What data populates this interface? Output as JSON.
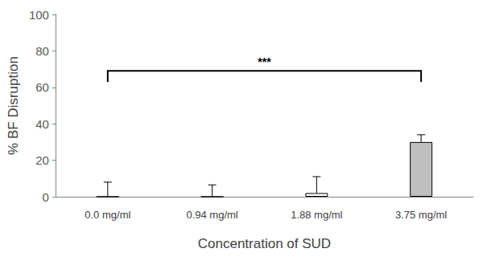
{
  "chart_data": {
    "type": "bar",
    "x_label": "Concentration of SUD",
    "y_label": "% BF Disruption",
    "categories": [
      "0.0 mg/ml",
      "0.94 mg/ml",
      "1.88 mg/ml",
      "3.75 mg/ml"
    ],
    "values": [
      0,
      0,
      2,
      30
    ],
    "error": [
      8,
      6.5,
      9,
      4
    ],
    "colors": [
      "#ffffff",
      "#ffffff",
      "#ffffff",
      "#bfbfbf"
    ],
    "ylim": [
      0,
      100
    ],
    "yticks": [
      0,
      20,
      40,
      60,
      80,
      100
    ],
    "grid": false,
    "annotations": [
      {
        "text": "***",
        "from": "0.0 mg/ml",
        "to": "3.75 mg/ml"
      }
    ]
  }
}
